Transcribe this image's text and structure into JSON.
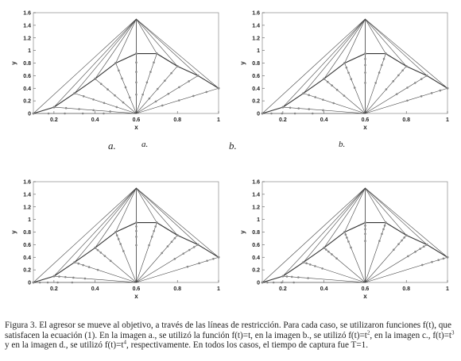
{
  "figure": {
    "subplots": [
      {
        "label_outer": "a.",
        "label_inner": "a.",
        "exponent": 1
      },
      {
        "label_outer": "b.",
        "label_inner": "b.",
        "exponent": 2
      },
      {
        "label_outer": "",
        "label_inner": "",
        "exponent": 3
      },
      {
        "label_outer": "",
        "label_inner": "",
        "exponent": 4
      }
    ],
    "axis": {
      "xlabel": "x",
      "ylabel": "y",
      "xticks": [
        "0.2",
        "0.4",
        "0.6",
        "0.8",
        "1"
      ],
      "yticks": [
        "0",
        "0.2",
        "0.4",
        "0.6",
        "0.8",
        "1",
        "1.2",
        "1.4",
        "1.6"
      ]
    },
    "line_color": "#444444",
    "marker_color": "#888888"
  },
  "chart_data": {
    "type": "line",
    "xlim": [
      0.1,
      1.0
    ],
    "ylim": [
      0,
      1.6
    ],
    "target": [
      0.6,
      0.0
    ],
    "pursuer_start": [
      0.6,
      1.5
    ],
    "restriction_line_endpoints": [
      [
        0.1,
        0.0
      ],
      [
        0.2,
        0.1
      ],
      [
        0.3,
        0.32
      ],
      [
        0.4,
        0.55
      ],
      [
        0.5,
        0.8
      ],
      [
        0.6,
        0.95
      ],
      [
        0.7,
        0.95
      ],
      [
        0.8,
        0.75
      ],
      [
        0.9,
        0.6
      ],
      [
        1.0,
        0.4
      ]
    ],
    "grid": false
  },
  "caption": {
    "part1": "Figura 3. El agresor se mueve al objetivo, a través de las líneas de restricción. Para cada caso, se utilizaron funciones f(t), que satisfacen la ecuación (1). En la imagen a., se utilizó la función f(t)=t, en la imagen b., se utilizó f(t)=t",
    "sup1": "2",
    "part2": ", en la imagen c., f(t)=t",
    "sup2": "3",
    "part3": " y en la imagen d., se utilizó f(t)=t",
    "sup3": "4",
    "part4": ", respectivamente. En todos los casos, el tiempo de captura fue T=1."
  }
}
